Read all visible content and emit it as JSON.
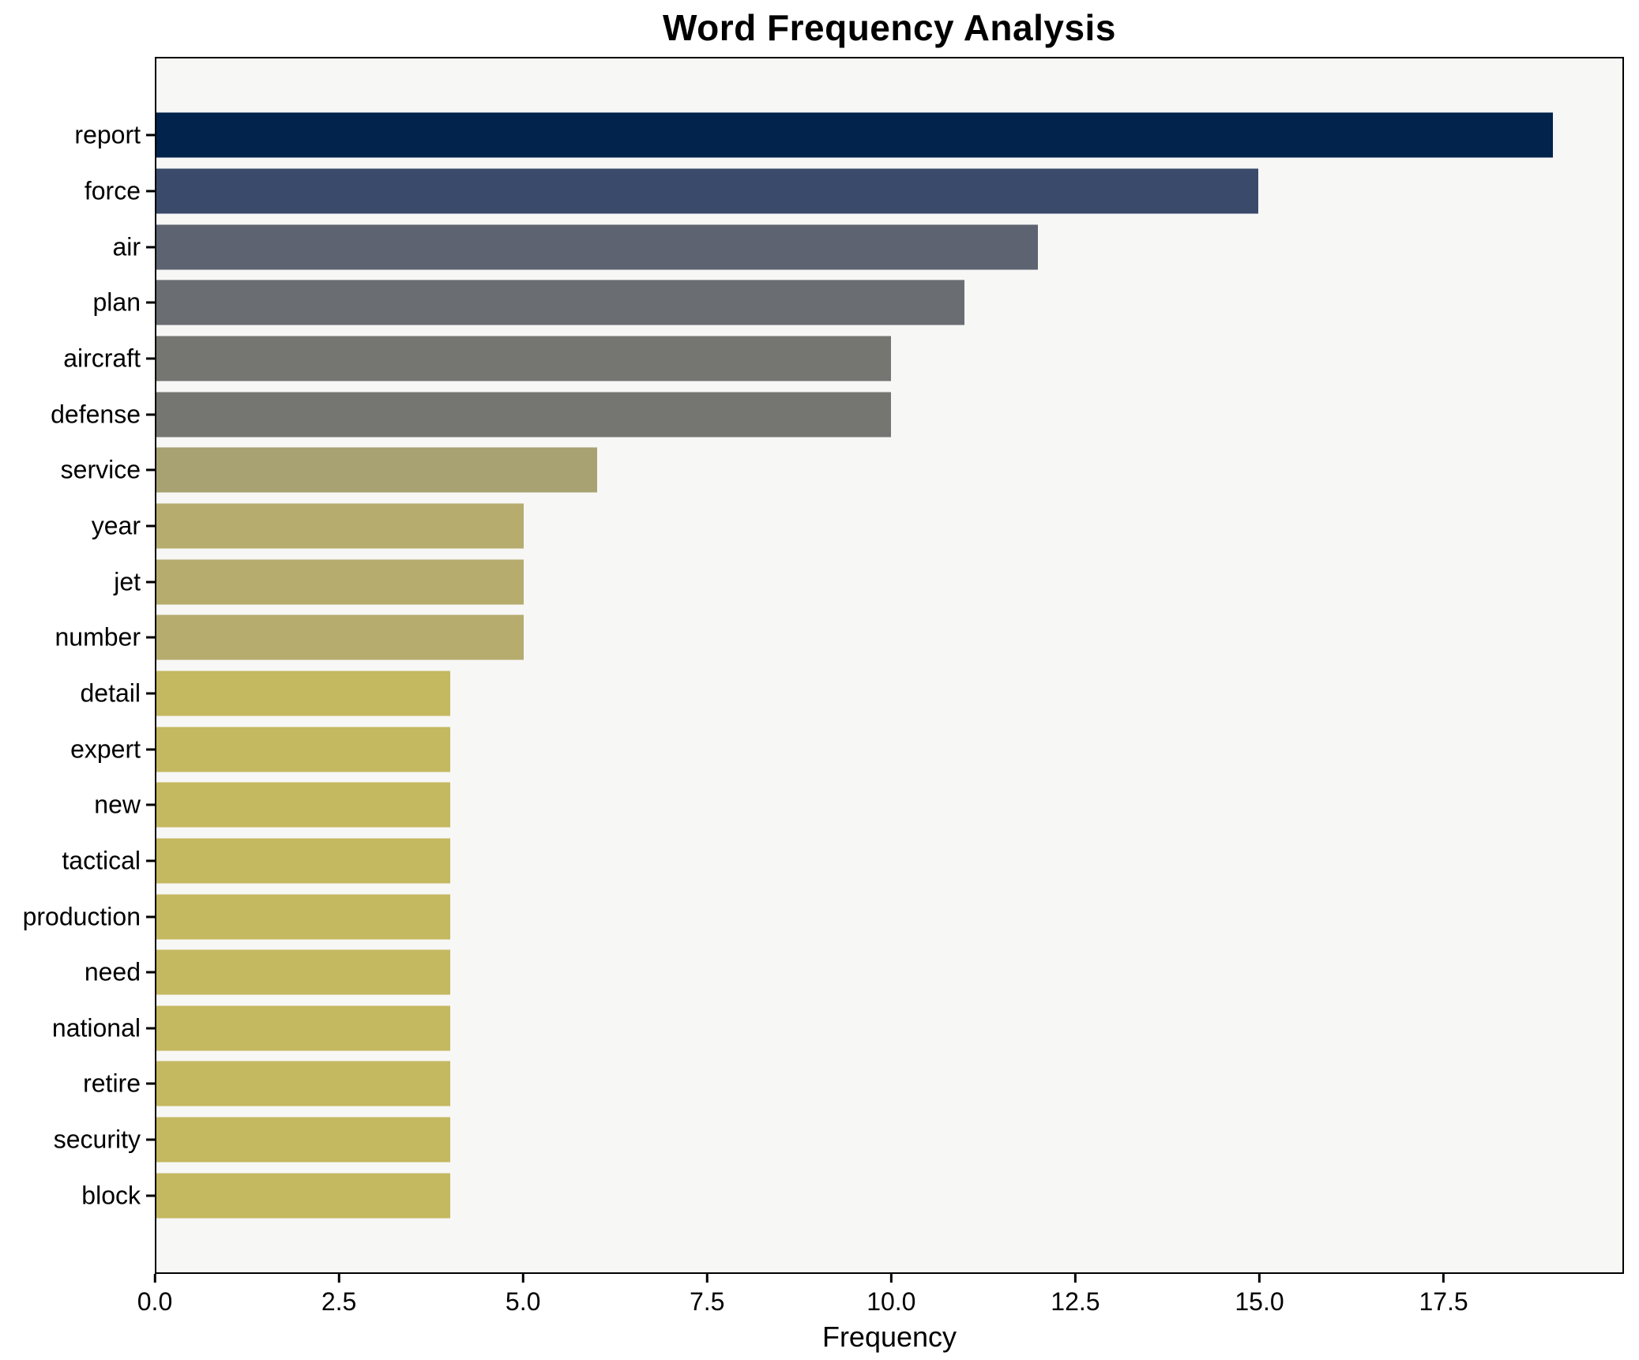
{
  "title": "Word Frequency Analysis",
  "chart_data": {
    "type": "bar",
    "orientation": "horizontal",
    "title": "Word Frequency Analysis",
    "xlabel": "Frequency",
    "ylabel": "",
    "categories": [
      "report",
      "force",
      "air",
      "plan",
      "aircraft",
      "defense",
      "service",
      "year",
      "jet",
      "number",
      "detail",
      "expert",
      "new",
      "tactical",
      "production",
      "need",
      "national",
      "retire",
      "security",
      "block"
    ],
    "values": [
      19,
      15,
      12,
      11,
      10,
      10,
      6,
      5,
      5,
      5,
      4,
      4,
      4,
      4,
      4,
      4,
      4,
      4,
      4,
      4
    ],
    "bar_colors": [
      "#02234c",
      "#3a4a6b",
      "#5d6370",
      "#6a6d71",
      "#757572",
      "#757572",
      "#a8a172",
      "#b5ac6e",
      "#b5ac6e",
      "#b5ac6e",
      "#c4b860",
      "#c4b860",
      "#c4b860",
      "#c4b860",
      "#c4b860",
      "#c4b860",
      "#c4b860",
      "#c4b860",
      "#c4b860",
      "#c4b860"
    ],
    "xlim": [
      0,
      19.95
    ],
    "xticks": [
      0,
      2.5,
      5,
      7.5,
      10,
      12.5,
      15,
      17.5
    ],
    "xtick_labels": [
      "0.0",
      "2.5",
      "5.0",
      "7.5",
      "10.0",
      "12.5",
      "15.0",
      "17.5"
    ],
    "grid": false,
    "legend_position": "none",
    "plot_background": "#f7f7f6",
    "figure_background": "#ffffff",
    "bar_height_fraction": 0.8
  }
}
